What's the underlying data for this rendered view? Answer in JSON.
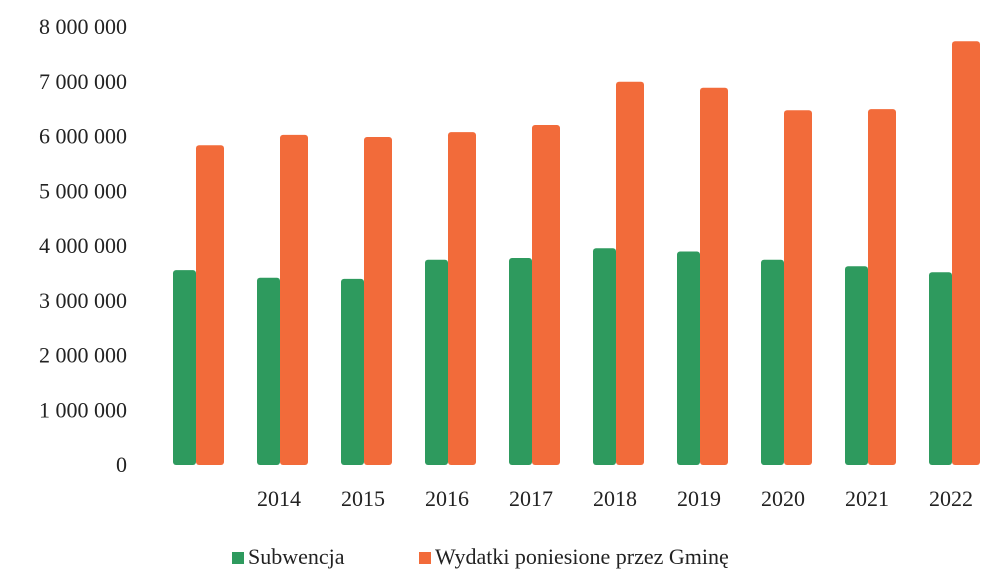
{
  "chart_data": {
    "type": "bar",
    "categories": [
      null,
      "2014",
      "2015",
      "2016",
      "2017",
      "2018",
      "2019",
      "2020",
      "2021",
      "2022"
    ],
    "series": [
      {
        "name": "Subwencja",
        "color": "#2e9a5e",
        "values": [
          3560000,
          3420000,
          3400000,
          3750000,
          3780000,
          3960000,
          3900000,
          3750000,
          3630000,
          3520000
        ]
      },
      {
        "name": "Wydatki poniesione przez Gminę",
        "color": "#f26b3a",
        "values": [
          5840000,
          6030000,
          5990000,
          6080000,
          6210000,
          7000000,
          6890000,
          6480000,
          6500000,
          7740000
        ]
      }
    ],
    "ylim": [
      0,
      8000000
    ],
    "yticks": [
      0,
      {
        "value": 1000000,
        "label": "1 000 000"
      },
      {
        "value": 2000000,
        "label": "2 000 000"
      },
      {
        "value": 3000000,
        "label": "3 000 000"
      },
      {
        "value": 4000000,
        "label": "4 000 000"
      },
      {
        "value": 5000000,
        "label": "5 000 000"
      },
      {
        "value": 6000000,
        "label": "6 000 000"
      },
      {
        "value": 7000000,
        "label": "7 000 000"
      },
      {
        "value": 8000000,
        "label": "8 000 000"
      }
    ],
    "grid": false,
    "legend": "bottom"
  }
}
